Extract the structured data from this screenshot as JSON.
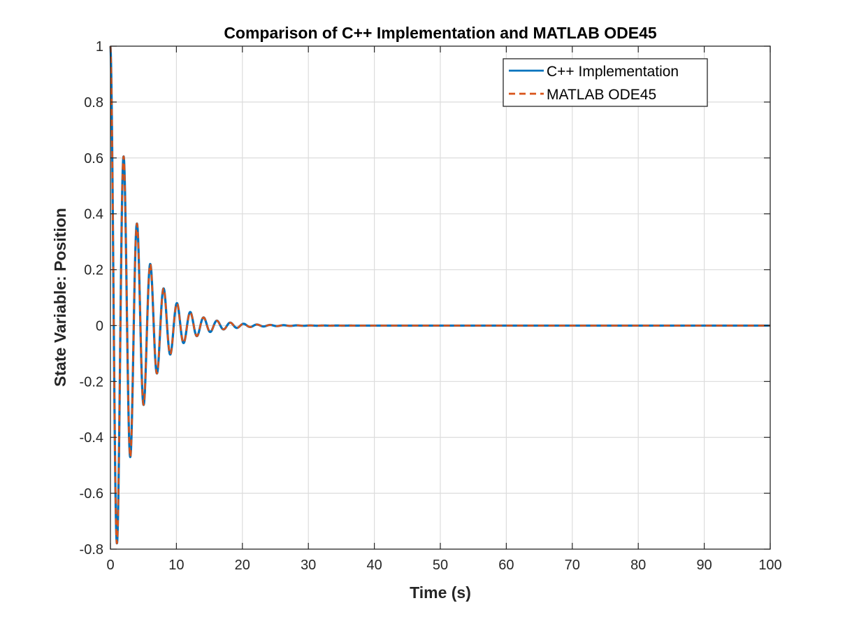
{
  "chart_data": {
    "type": "line",
    "title": "Comparison of C++ Implementation and MATLAB ODE45",
    "xlabel": "Time (s)",
    "ylabel": "State Variable: Position",
    "xlim": [
      0,
      100
    ],
    "ylim": [
      -0.8,
      1
    ],
    "xticks": [
      0,
      10,
      20,
      30,
      40,
      50,
      60,
      70,
      80,
      90,
      100
    ],
    "yticks": [
      -0.8,
      -0.6,
      -0.4,
      -0.2,
      0,
      0.2,
      0.4,
      0.6,
      0.8,
      1
    ],
    "xtick_labels": [
      "0",
      "10",
      "20",
      "30",
      "40",
      "50",
      "60",
      "70",
      "80",
      "90",
      "100"
    ],
    "ytick_labels": [
      "-0.8",
      "-0.6",
      "-0.4",
      "-0.2",
      "0",
      "0.2",
      "0.4",
      "0.6",
      "0.8",
      "1"
    ],
    "grid": true,
    "legend_position": "top-right",
    "series": [
      {
        "name": "C++ Implementation",
        "color": "#0072BD",
        "style": "solid",
        "model": "damped-cosine",
        "initial_value": 1.0,
        "period_s": 2.02,
        "decay_rate_per_s": 0.25,
        "t_end": 100
      },
      {
        "name": "MATLAB ODE45",
        "color": "#D95319",
        "style": "dashed",
        "model": "damped-cosine",
        "initial_value": 1.0,
        "period_s": 2.02,
        "decay_rate_per_s": 0.25,
        "t_end": 100
      }
    ],
    "peaks": [
      {
        "x": 0,
        "y": 1.0
      },
      {
        "x": 1.0,
        "y": -0.78
      },
      {
        "x": 2.0,
        "y": 0.61
      },
      {
        "x": 3.0,
        "y": -0.47
      },
      {
        "x": 4.0,
        "y": 0.37
      },
      {
        "x": 5.0,
        "y": -0.29
      },
      {
        "x": 6.0,
        "y": 0.22
      },
      {
        "x": 7.0,
        "y": -0.17
      },
      {
        "x": 8.0,
        "y": 0.14
      },
      {
        "x": 9.0,
        "y": -0.11
      },
      {
        "x": 10.0,
        "y": 0.08
      }
    ]
  }
}
